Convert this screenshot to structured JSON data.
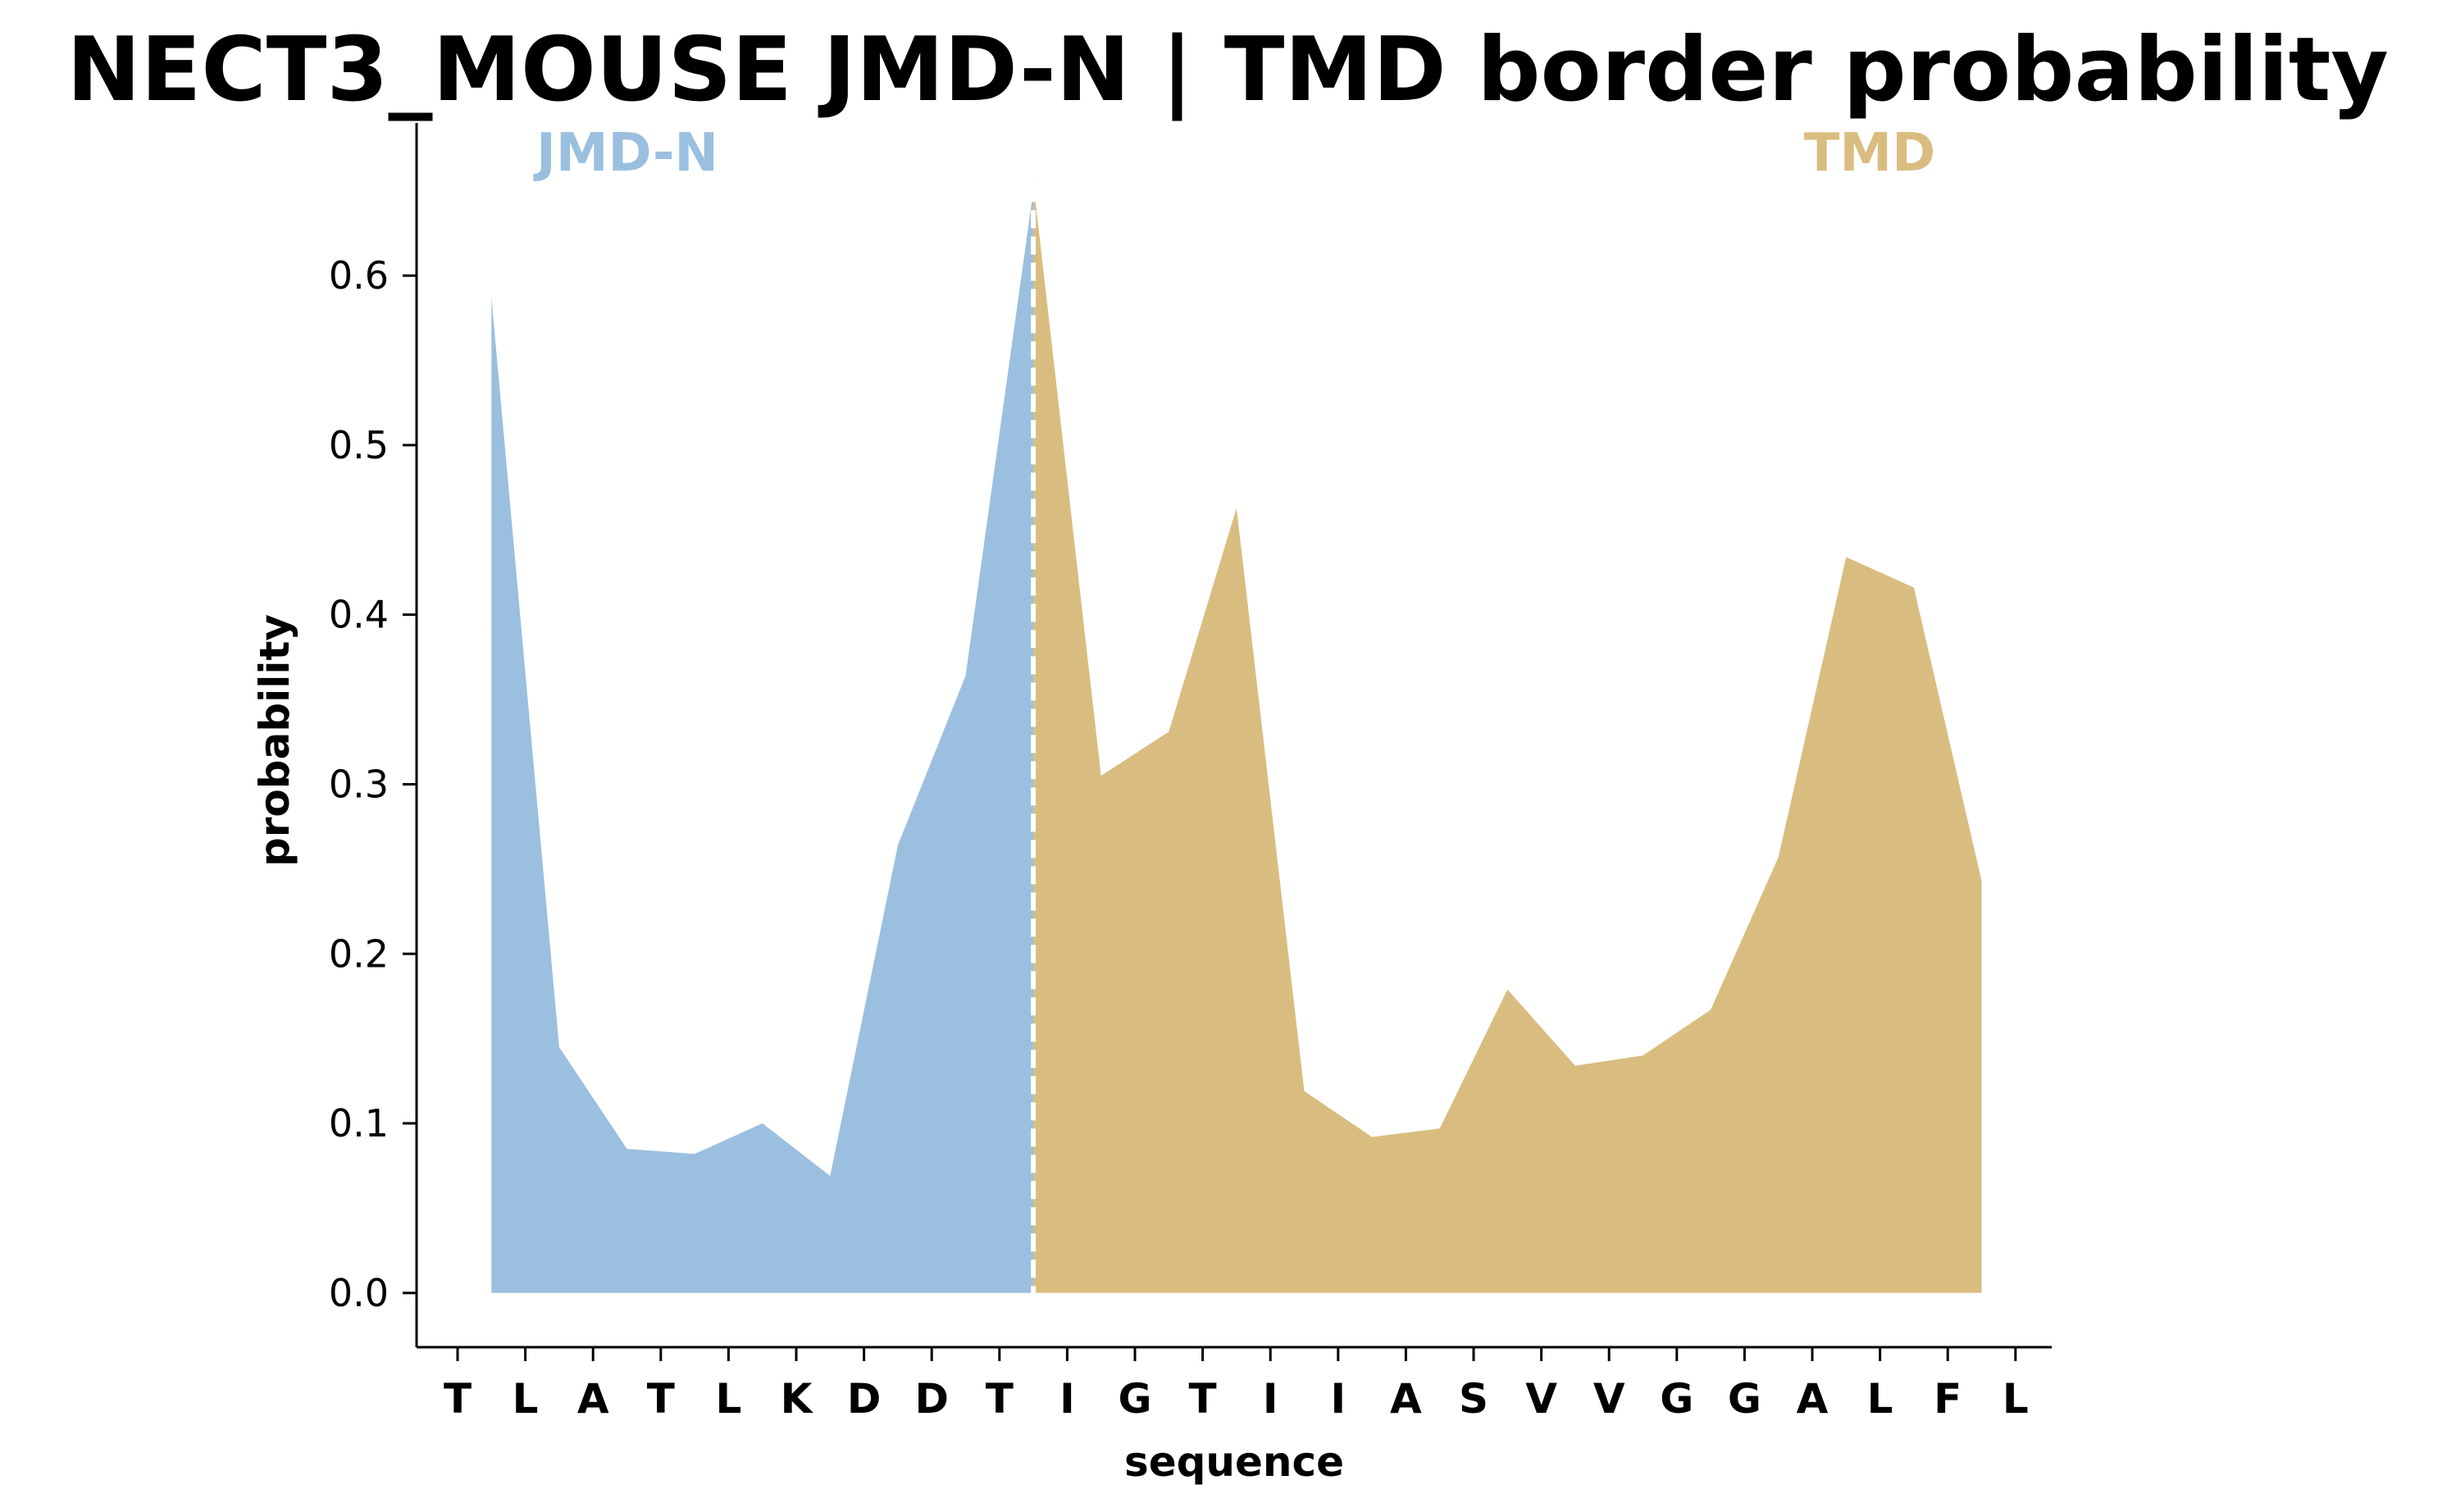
{
  "chart_data": {
    "type": "area",
    "title": "NECT3_MOUSE JMD-N | TMD border probability",
    "xlabel": "sequence",
    "ylabel": "probability",
    "ylim": [
      -0.032,
      0.69
    ],
    "yticks": [
      0.0,
      0.1,
      0.2,
      0.3,
      0.4,
      0.5,
      0.6
    ],
    "ytick_labels": [
      "0.0",
      "0.1",
      "0.2",
      "0.3",
      "0.4",
      "0.5",
      "0.6"
    ],
    "categories": [
      "T",
      "L",
      "A",
      "T",
      "L",
      "K",
      "D",
      "D",
      "T",
      "I",
      "G",
      "T",
      "I",
      "I",
      "A",
      "S",
      "V",
      "V",
      "G",
      "G",
      "A",
      "L",
      "F",
      "L"
    ],
    "border_after_index": 8,
    "regions": [
      {
        "name": "JMD-N",
        "color": "#9bbfdf"
      },
      {
        "name": "TMD",
        "color": "#d9bd80"
      }
    ],
    "series": [
      {
        "name": "JMD-N",
        "color": "#9bbfdf",
        "x": [
          0.5,
          1.5,
          2.5,
          3.5,
          4.5,
          5.5,
          6.5,
          7.5,
          8.5
        ],
        "values": [
          0.587,
          0.145,
          0.085,
          0.082,
          0.1,
          0.069,
          0.264,
          0.364,
          0.65
        ]
      },
      {
        "name": "TMD",
        "color": "#d9bd80",
        "x": [
          8.5,
          9.5,
          10.5,
          11.5,
          12.5,
          13.5,
          14.5,
          15.5,
          16.5,
          17.5,
          18.5,
          19.5,
          20.5,
          21.5,
          22.5
        ],
        "values": [
          0.655,
          0.305,
          0.331,
          0.463,
          0.119,
          0.092,
          0.097,
          0.179,
          0.134,
          0.14,
          0.167,
          0.257,
          0.434,
          0.416,
          0.243
        ]
      }
    ],
    "border_line": {
      "style": "dashed",
      "color": "#ffffff"
    },
    "grid": false,
    "legend": "none"
  }
}
